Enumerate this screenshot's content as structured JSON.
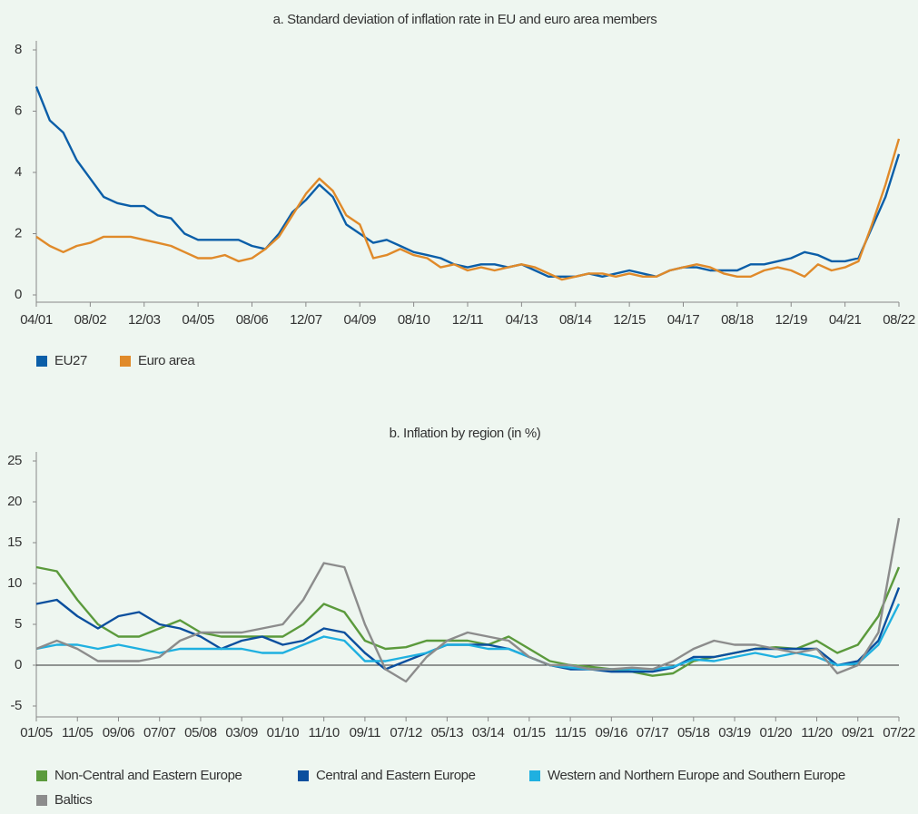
{
  "chart_data": [
    {
      "type": "line",
      "title": "a. Standard deviation of inflation rate in EU and euro area members",
      "categories": [
        "04/01",
        null,
        null,
        null,
        "08/02",
        null,
        null,
        null,
        "12/03",
        null,
        null,
        null,
        "04/05",
        null,
        null,
        null,
        "08/06",
        null,
        null,
        null,
        "12/07",
        null,
        null,
        null,
        "04/09",
        null,
        null,
        null,
        "08/10",
        null,
        null,
        null,
        "12/11",
        null,
        null,
        null,
        "04/13",
        null,
        null,
        null,
        "08/14",
        null,
        null,
        null,
        "12/15",
        null,
        null,
        null,
        "04/17",
        null,
        null,
        null,
        "08/18",
        null,
        null,
        null,
        "12/19",
        null,
        null,
        null,
        "04/21",
        null,
        null,
        null,
        "08/22"
      ],
      "series": [
        {
          "name": "EU27",
          "color": "#0b5ea8",
          "values": [
            6.8,
            5.7,
            5.3,
            4.4,
            3.8,
            3.2,
            3.0,
            2.9,
            2.9,
            2.6,
            2.5,
            2.0,
            1.8,
            1.8,
            1.8,
            1.8,
            1.6,
            1.5,
            2.0,
            2.7,
            3.1,
            3.6,
            3.2,
            2.3,
            2.0,
            1.7,
            1.8,
            1.6,
            1.4,
            1.3,
            1.2,
            1.0,
            0.9,
            1.0,
            1.0,
            0.9,
            1.0,
            0.8,
            0.6,
            0.6,
            0.6,
            0.7,
            0.6,
            0.7,
            0.8,
            0.7,
            0.6,
            0.8,
            0.9,
            0.9,
            0.8,
            0.8,
            0.8,
            1.0,
            1.0,
            1.1,
            1.2,
            1.4,
            1.3,
            1.1,
            1.1,
            1.2,
            2.2,
            3.2,
            4.6
          ]
        },
        {
          "name": "Euro area",
          "color": "#e08a2a",
          "values": [
            1.9,
            1.6,
            1.4,
            1.6,
            1.7,
            1.9,
            1.9,
            1.9,
            1.8,
            1.7,
            1.6,
            1.4,
            1.2,
            1.2,
            1.3,
            1.1,
            1.2,
            1.5,
            1.9,
            2.6,
            3.3,
            3.8,
            3.4,
            2.6,
            2.3,
            1.2,
            1.3,
            1.5,
            1.3,
            1.2,
            0.9,
            1.0,
            0.8,
            0.9,
            0.8,
            0.9,
            1.0,
            0.9,
            0.7,
            0.5,
            0.6,
            0.7,
            0.7,
            0.6,
            0.7,
            0.6,
            0.6,
            0.8,
            0.9,
            1.0,
            0.9,
            0.7,
            0.6,
            0.6,
            0.8,
            0.9,
            0.8,
            0.6,
            1.0,
            0.8,
            0.9,
            1.1,
            2.3,
            3.6,
            5.1
          ]
        }
      ],
      "ylim": [
        0,
        8
      ],
      "yticks": [
        0,
        2,
        4,
        6,
        8
      ],
      "legend": "bottom-left"
    },
    {
      "type": "line",
      "title": "b. Inflation by region (in %)",
      "categories": [
        "01/05",
        null,
        "11/05",
        null,
        "09/06",
        null,
        "07/07",
        null,
        "05/08",
        null,
        "03/09",
        null,
        "01/10",
        null,
        "11/10",
        null,
        "09/11",
        null,
        "07/12",
        null,
        "05/13",
        null,
        "03/14",
        null,
        "01/15",
        null,
        "11/15",
        null,
        "09/16",
        null,
        "07/17",
        null,
        "05/18",
        null,
        "03/19",
        null,
        "01/20",
        null,
        "11/20",
        null,
        "09/21",
        null,
        "07/22"
      ],
      "series": [
        {
          "name": "Non-Central and Eastern Europe",
          "color": "#5b9a3c",
          "values": [
            12,
            11.5,
            8,
            5,
            3.5,
            3.5,
            4.5,
            5.5,
            4,
            3.5,
            3.5,
            3.5,
            3.5,
            5,
            7.5,
            6.5,
            3,
            2,
            2.2,
            3,
            3,
            3,
            2.5,
            3.5,
            2,
            0.5,
            0,
            -0.2,
            -0.5,
            -0.8,
            -1.3,
            -1,
            0.5,
            1,
            1.5,
            2,
            2.2,
            2,
            3,
            1.5,
            2.5,
            6,
            12
          ]
        },
        {
          "name": "Central and Eastern Europe",
          "color": "#0b4f9e",
          "values": [
            7.5,
            8,
            6,
            4.5,
            6,
            6.5,
            5,
            4.5,
            3.5,
            2,
            3,
            3.5,
            2.5,
            3,
            4.5,
            4,
            1.5,
            -0.5,
            0.5,
            1.5,
            2.5,
            2.5,
            2.5,
            2,
            1,
            0,
            -0.5,
            -0.5,
            -0.8,
            -0.8,
            -0.8,
            -0.3,
            1,
            1,
            1.5,
            2,
            2,
            2,
            2,
            0,
            0.5,
            3,
            9.5
          ]
        },
        {
          "name": "Western and Northern Europe and Southern Europe",
          "color": "#1fb0e0",
          "values": [
            2,
            2.5,
            2.5,
            2,
            2.5,
            2,
            1.5,
            2,
            2,
            2,
            2,
            1.5,
            1.5,
            2.5,
            3.5,
            3,
            0.5,
            0.5,
            1,
            1.5,
            2.5,
            2.5,
            2,
            2,
            1,
            0,
            -0.3,
            -0.5,
            -0.5,
            -0.5,
            -0.5,
            -0.2,
            0.7,
            0.5,
            1,
            1.5,
            1,
            1.5,
            1,
            0,
            0.2,
            2.5,
            7.5
          ]
        },
        {
          "name": "Baltics",
          "color": "#8c8c8c",
          "values": [
            2,
            3,
            2,
            0.5,
            0.5,
            0.5,
            1,
            3,
            4,
            4,
            4,
            4.5,
            5,
            8,
            12.5,
            12,
            5,
            -0.5,
            -2,
            1,
            3,
            4,
            3.5,
            3,
            1,
            0,
            0,
            -0.5,
            -0.5,
            -0.3,
            -0.5,
            0.5,
            2,
            3,
            2.5,
            2.5,
            2,
            1.5,
            2,
            -1,
            0,
            4,
            18
          ]
        }
      ],
      "ylim": [
        -5,
        25
      ],
      "yticks": [
        -5,
        0,
        5,
        10,
        15,
        20,
        25
      ],
      "reference_line": 0,
      "legend": "bottom-left"
    }
  ]
}
